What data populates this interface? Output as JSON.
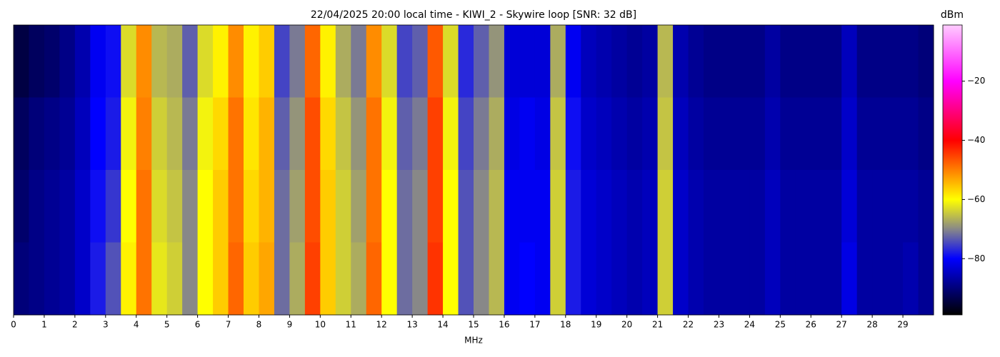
{
  "chart_data": {
    "type": "heatmap",
    "title": "22/04/2025 20:00 local time - KIWI_2 - Skywire loop [SNR: 32 dB]",
    "xlabel": "MHz",
    "colorbar_label": "dBm",
    "xlim": [
      0,
      30
    ],
    "xticks": [
      0,
      1,
      2,
      3,
      4,
      5,
      6,
      7,
      8,
      9,
      10,
      11,
      12,
      13,
      14,
      15,
      16,
      17,
      18,
      19,
      20,
      21,
      22,
      23,
      24,
      25,
      26,
      27,
      28,
      29
    ],
    "clim": [
      -99,
      -1
    ],
    "cticks": [
      {
        "value": -20,
        "label": "−20"
      },
      {
        "value": -40,
        "label": "−40"
      },
      {
        "value": -60,
        "label": "−60"
      },
      {
        "value": -80,
        "label": "−80"
      }
    ],
    "colorscale": [
      [
        -99,
        "#000000"
      ],
      [
        -80,
        "#0000ff"
      ],
      [
        -70,
        "#888888"
      ],
      [
        -60,
        "#ffff00"
      ],
      [
        -40,
        "#ff0000"
      ],
      [
        -20,
        "#ff00ff"
      ],
      [
        -1,
        "#ffccff"
      ]
    ],
    "z": [
      [
        -94,
        -92,
        -91,
        -89,
        -86,
        -81,
        -79,
        -63,
        -51,
        -66,
        -67,
        -73,
        -63,
        -59,
        -51,
        -59,
        -56,
        -75,
        -71,
        -48,
        -59,
        -67,
        -71,
        -51,
        -63,
        -75,
        -73,
        -47,
        -63,
        -77,
        -73,
        -69,
        -83,
        -83,
        -83,
        -67,
        -81,
        -85,
        -86,
        -87,
        -88,
        -87,
        -66,
        -86,
        -88,
        -89,
        -89,
        -89,
        -89,
        -87,
        -89,
        -89,
        -89,
        -89,
        -85,
        -89,
        -89,
        -89,
        -89,
        -90
      ],
      [
        -92,
        -90,
        -89,
        -88,
        -85,
        -80,
        -78,
        -61,
        -50,
        -64,
        -66,
        -71,
        -61,
        -57,
        -49,
        -58,
        -54,
        -73,
        -69,
        -46,
        -57,
        -65,
        -69,
        -49,
        -61,
        -73,
        -71,
        -45,
        -61,
        -75,
        -71,
        -67,
        -82,
        -81,
        -82,
        -65,
        -79,
        -84,
        -85,
        -86,
        -87,
        -86,
        -65,
        -85,
        -87,
        -88,
        -88,
        -88,
        -88,
        -86,
        -88,
        -88,
        -88,
        -88,
        -84,
        -88,
        -88,
        -88,
        -88,
        -89
      ],
      [
        -91,
        -89,
        -88,
        -87,
        -84,
        -79,
        -76,
        -60,
        -49,
        -63,
        -65,
        -70,
        -60,
        -56,
        -49,
        -57,
        -54,
        -72,
        -68,
        -46,
        -56,
        -64,
        -68,
        -49,
        -60,
        -72,
        -70,
        -45,
        -60,
        -74,
        -70,
        -66,
        -81,
        -81,
        -81,
        -64,
        -78,
        -83,
        -84,
        -85,
        -86,
        -85,
        -64,
        -84,
        -86,
        -87,
        -87,
        -87,
        -87,
        -85,
        -87,
        -87,
        -87,
        -87,
        -83,
        -87,
        -87,
        -87,
        -87,
        -88
      ],
      [
        -90,
        -89,
        -88,
        -87,
        -84,
        -78,
        -74,
        -59,
        -49,
        -62,
        -64,
        -70,
        -60,
        -56,
        -48,
        -56,
        -53,
        -72,
        -67,
        -45,
        -56,
        -64,
        -67,
        -48,
        -60,
        -72,
        -70,
        -44,
        -60,
        -74,
        -70,
        -66,
        -81,
        -80,
        -81,
        -64,
        -78,
        -83,
        -84,
        -85,
        -86,
        -85,
        -64,
        -84,
        -86,
        -87,
        -87,
        -87,
        -87,
        -85,
        -87,
        -87,
        -87,
        -87,
        -82,
        -87,
        -87,
        -87,
        -86,
        -88
      ]
    ]
  }
}
